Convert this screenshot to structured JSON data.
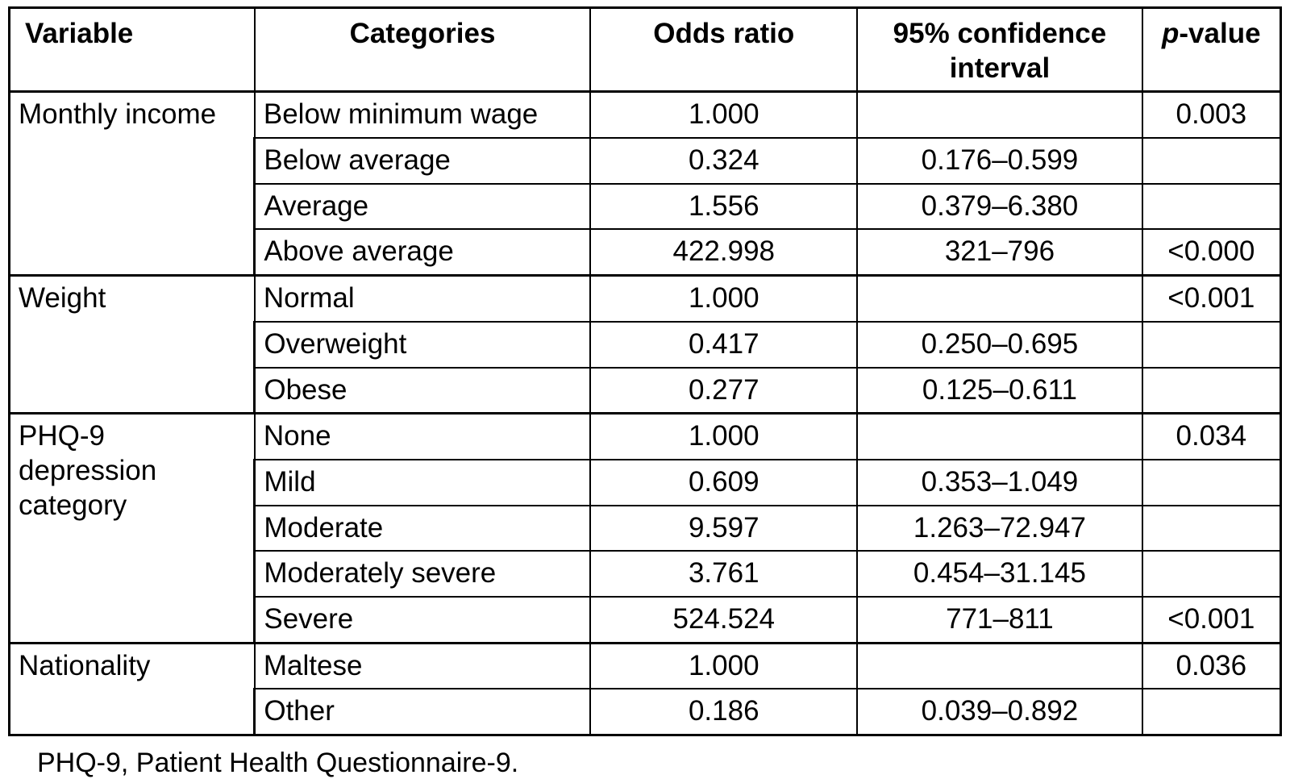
{
  "table": {
    "columns": [
      "Variable",
      "Categories",
      "Odds ratio",
      "95% confidence interval"
    ],
    "p_column": {
      "italic": "p",
      "rest": "-value"
    },
    "groups": [
      {
        "variable": "Monthly income",
        "rows": [
          {
            "category": "Below minimum wage",
            "odds_ratio": "1.000",
            "ci": "",
            "p": "0.003"
          },
          {
            "category": "Below average",
            "odds_ratio": "0.324",
            "ci": "0.176–0.599",
            "p": ""
          },
          {
            "category": "Average",
            "odds_ratio": "1.556",
            "ci": "0.379–6.380",
            "p": ""
          },
          {
            "category": "Above average",
            "odds_ratio": "422.998",
            "ci": "321–796",
            "p": "<0.000"
          }
        ]
      },
      {
        "variable": "Weight",
        "rows": [
          {
            "category": "Normal",
            "odds_ratio": "1.000",
            "ci": "",
            "p": "<0.001"
          },
          {
            "category": "Overweight",
            "odds_ratio": "0.417",
            "ci": "0.250–0.695",
            "p": ""
          },
          {
            "category": "Obese",
            "odds_ratio": "0.277",
            "ci": "0.125–0.611",
            "p": ""
          }
        ]
      },
      {
        "variable": "PHQ-9 depression category",
        "rows": [
          {
            "category": "None",
            "odds_ratio": "1.000",
            "ci": "",
            "p": "0.034"
          },
          {
            "category": "Mild",
            "odds_ratio": "0.609",
            "ci": "0.353–1.049",
            "p": ""
          },
          {
            "category": "Moderate",
            "odds_ratio": "9.597",
            "ci": "1.263–72.947",
            "p": ""
          },
          {
            "category": "Moderately severe",
            "odds_ratio": "3.761",
            "ci": "0.454–31.145",
            "p": ""
          },
          {
            "category": "Severe",
            "odds_ratio": "524.524",
            "ci": "771–811",
            "p": "<0.001"
          }
        ]
      },
      {
        "variable": "Nationality",
        "rows": [
          {
            "category": "Maltese",
            "odds_ratio": "1.000",
            "ci": "",
            "p": "0.036"
          },
          {
            "category": "Other",
            "odds_ratio": "0.186",
            "ci": "0.039–0.892",
            "p": ""
          }
        ]
      }
    ],
    "footnote": "PHQ-9, Patient Health Questionnaire-9."
  }
}
